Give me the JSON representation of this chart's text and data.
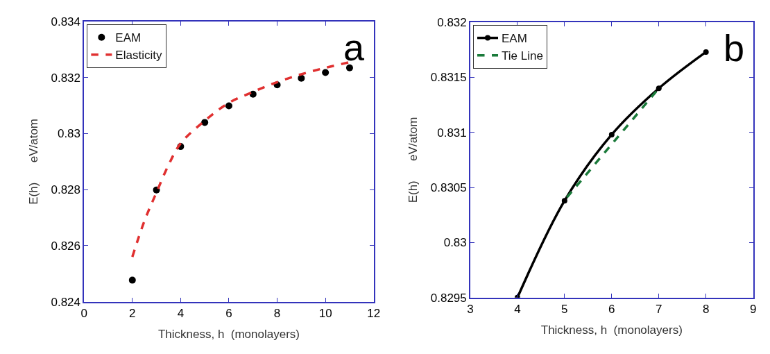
{
  "chart_data": [
    {
      "type": "scatter",
      "xlabel": "Thickness, h  (monolayers)",
      "ylabel": "E(h)      eV/atom",
      "annotations": [
        "a"
      ],
      "xlim": [
        0,
        12
      ],
      "xticks": [
        0,
        2,
        4,
        6,
        8,
        10,
        12
      ],
      "ylim": [
        0.824,
        0.834
      ],
      "yticks": [
        0.824,
        0.826,
        0.828,
        0.83,
        0.832,
        0.834
      ],
      "legend": "top left",
      "series": [
        {
          "name": "EAM",
          "marker": "circle",
          "color": "#000000",
          "x": [
            2,
            3,
            4,
            5,
            6,
            7,
            8,
            9,
            10,
            11
          ],
          "values": [
            0.82477,
            0.82799,
            0.82954,
            0.8304,
            0.83099,
            0.83141,
            0.83174,
            0.83198,
            0.83218,
            0.83235
          ]
        },
        {
          "name": "Elasticity",
          "type": "line",
          "line_style": "dashed",
          "marker": "none",
          "color": "#e03030",
          "x": [
            2,
            2.5,
            3,
            3.5,
            4,
            5,
            6,
            7,
            8,
            9,
            10,
            11
          ],
          "values": [
            0.8256,
            0.82688,
            0.8279,
            0.82888,
            0.82965,
            0.83046,
            0.8311,
            0.83149,
            0.83184,
            0.83212,
            0.83235,
            0.83255
          ]
        }
      ]
    },
    {
      "type": "line",
      "xlabel": "Thickness, h  (monolayers)",
      "ylabel": "E(h)      eV/atom",
      "annotations": [
        "b"
      ],
      "xlim": [
        3,
        9
      ],
      "xticks": [
        3,
        4,
        5,
        6,
        7,
        8,
        9
      ],
      "ylim": [
        0.8295,
        0.832
      ],
      "yticks": [
        0.8295,
        0.83,
        0.8305,
        0.831,
        0.8315,
        0.832
      ],
      "legend": "top left",
      "series": [
        {
          "name": "EAM",
          "marker": "circle",
          "line_style": "solid",
          "color": "#000000",
          "x": [
            4,
            5,
            6,
            7,
            8
          ],
          "values": [
            0.8295,
            0.83038,
            0.83098,
            0.8314,
            0.83173
          ]
        },
        {
          "name": "Tie Line",
          "marker": "none",
          "line_style": "dashed",
          "color": "#1a7a3a",
          "x": [
            5.05,
            7
          ],
          "values": [
            0.83041,
            0.8314
          ]
        }
      ]
    }
  ]
}
